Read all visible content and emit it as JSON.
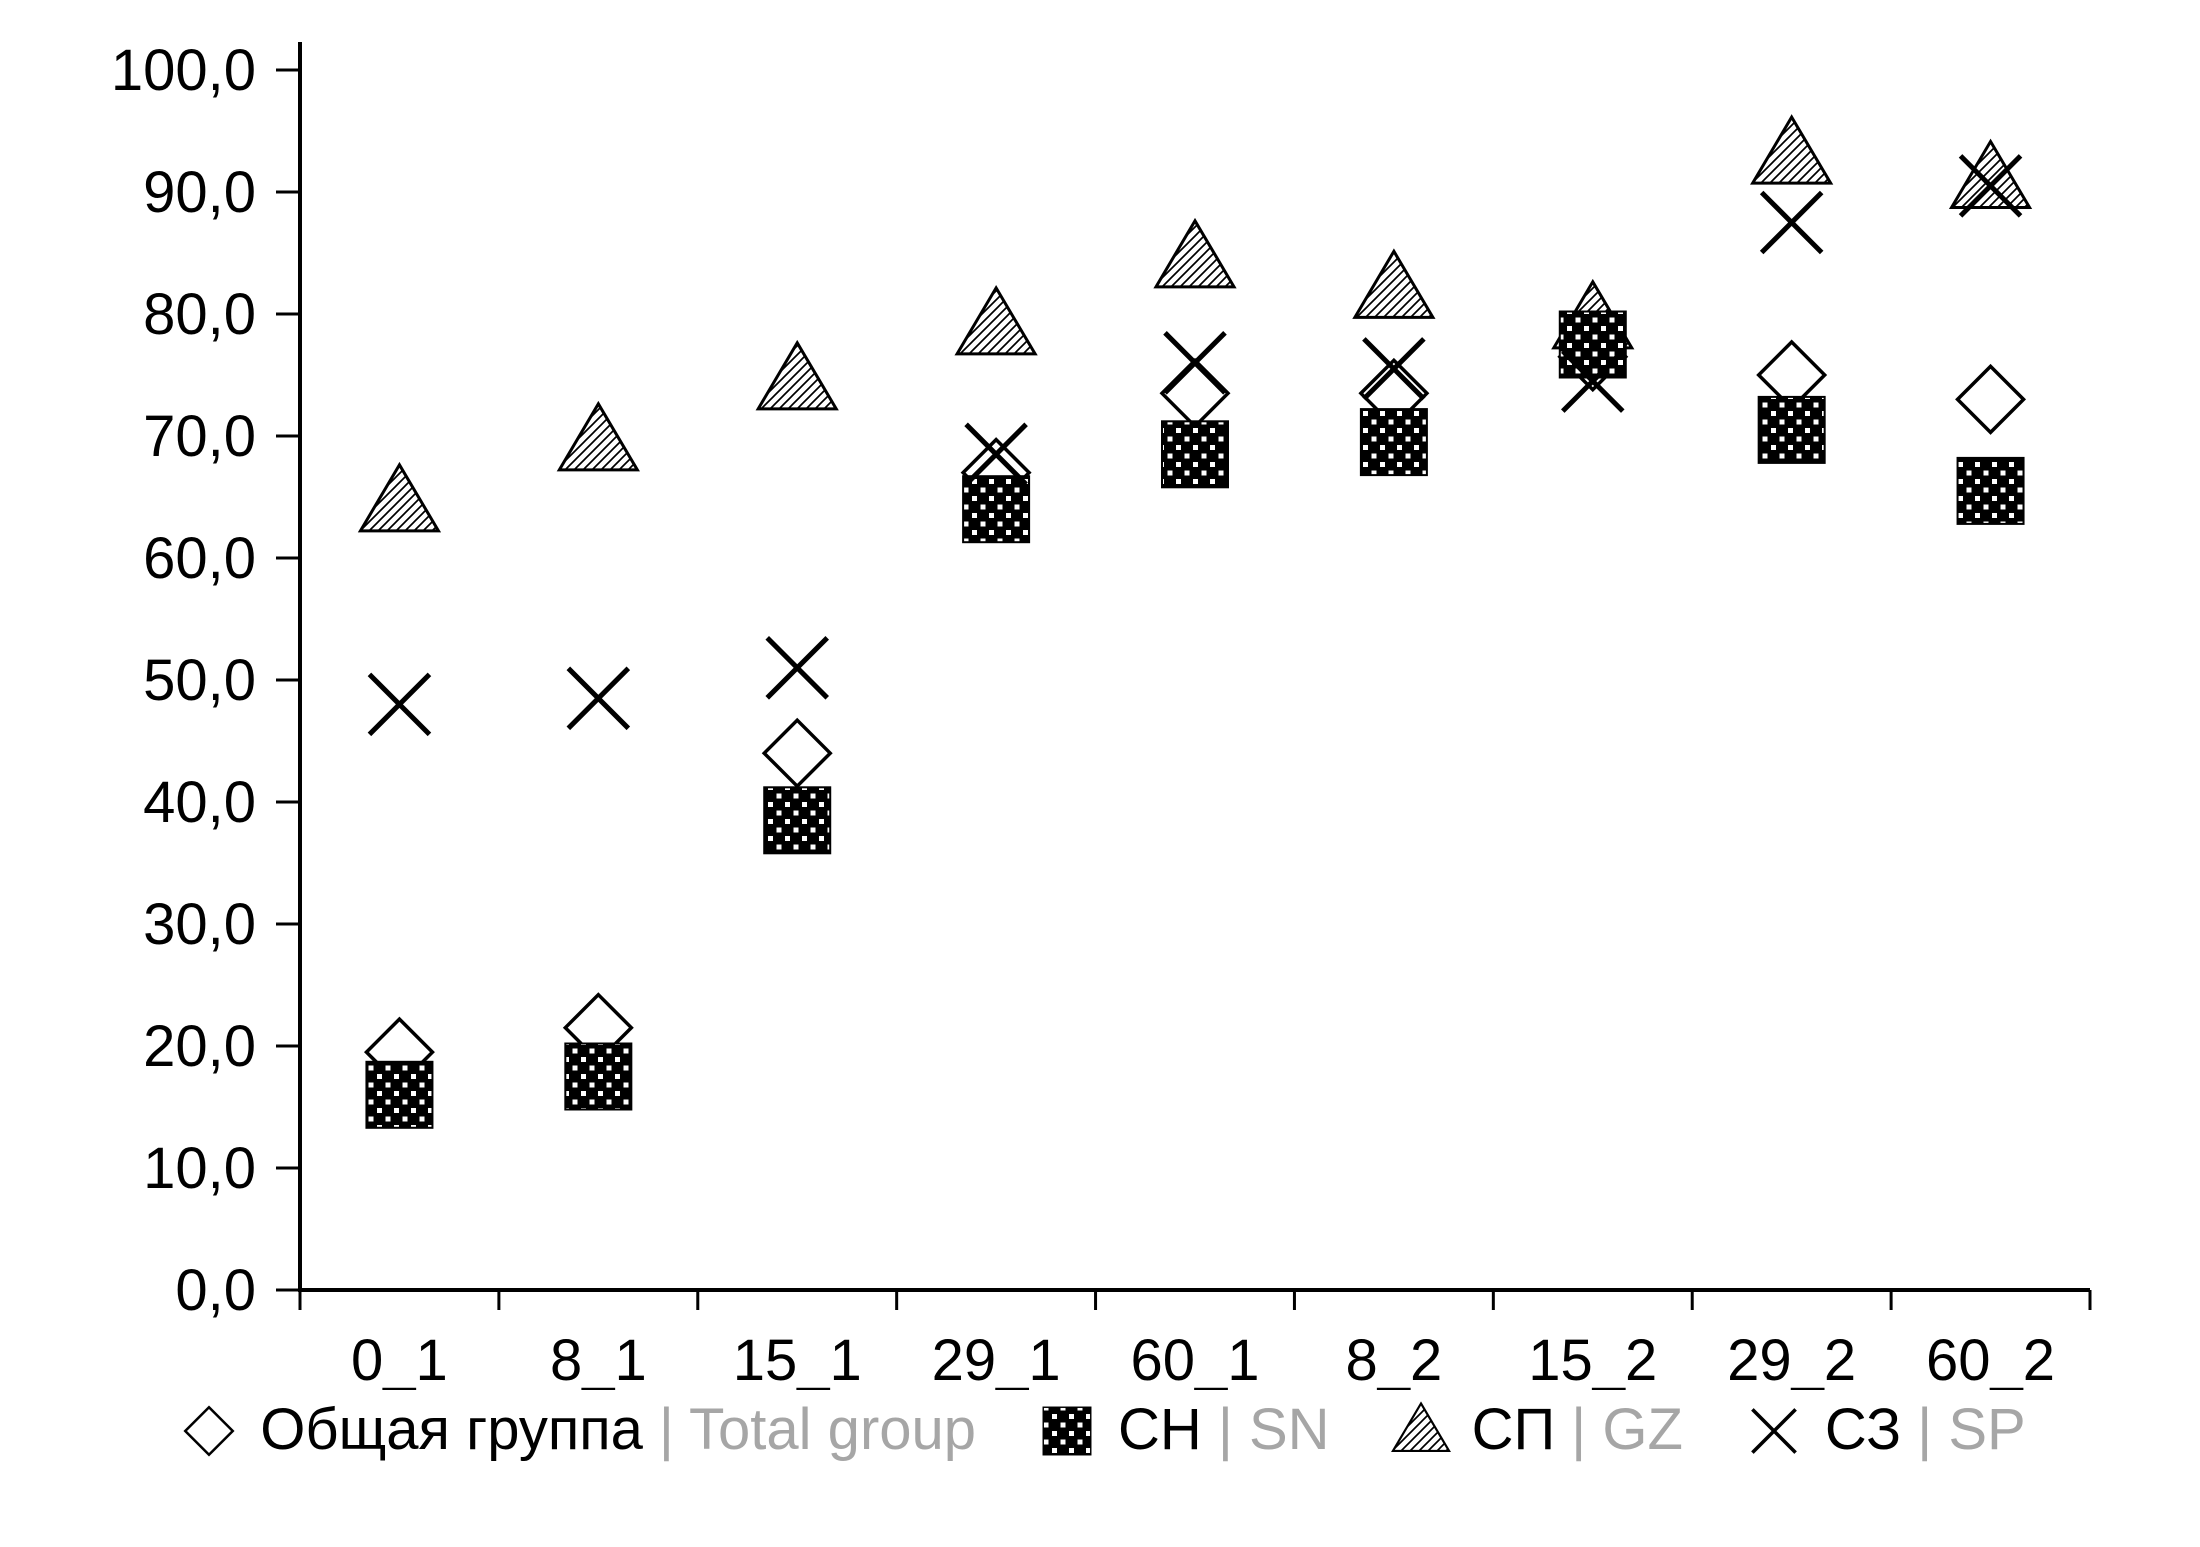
{
  "chart_data": {
    "type": "scatter",
    "categories": [
      "0_1",
      "8_1",
      "15_1",
      "29_1",
      "60_1",
      "8_2",
      "15_2",
      "29_2",
      "60_2"
    ],
    "series": [
      {
        "name_ru": "Общая группа",
        "name_en": "Total group",
        "marker": "diamond",
        "values": [
          19.5,
          21.5,
          44.0,
          67.0,
          73.5,
          73.5,
          76.5,
          75.0,
          73.0
        ]
      },
      {
        "name_ru": "СН",
        "name_en": "SN",
        "marker": "square",
        "values": [
          16.0,
          17.5,
          38.5,
          64.0,
          68.5,
          69.5,
          77.5,
          70.5,
          65.5
        ]
      },
      {
        "name_ru": "СП",
        "name_en": "GZ",
        "marker": "triangle",
        "values": [
          64.5,
          69.5,
          74.5,
          79.0,
          84.5,
          82.0,
          79.5,
          93.0,
          91.0
        ]
      },
      {
        "name_ru": "СЗ",
        "name_en": "SP",
        "marker": "x",
        "values": [
          48.0,
          48.5,
          51.0,
          68.5,
          76.0,
          75.5,
          74.5,
          87.5,
          90.5
        ]
      }
    ],
    "title": "",
    "xlabel": "",
    "ylabel": "",
    "ylim": [
      0,
      100
    ],
    "ytick_step": 10,
    "ytick_labels": [
      "0,0",
      "10,0",
      "20,0",
      "30,0",
      "40,0",
      "50,0",
      "60,0",
      "70,0",
      "80,0",
      "90,0",
      "100,0"
    ],
    "grid": false,
    "legend_position": "bottom",
    "legend_separator": "|",
    "z_order": [
      0,
      2,
      1,
      3
    ],
    "colors": {
      "axis": "#000000",
      "marker_stroke": "#000000",
      "marker_fill": "#ffffff",
      "legend_en_text": "#a6a6a6"
    }
  }
}
